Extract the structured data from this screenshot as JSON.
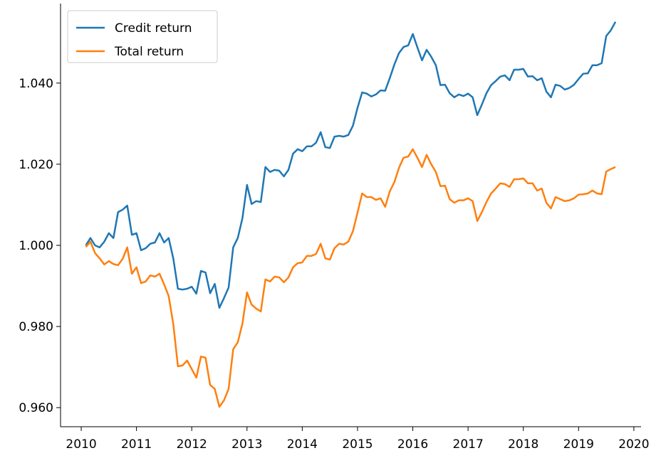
{
  "chart_data": {
    "type": "line",
    "x": [
      2010.083,
      2010.167,
      2010.25,
      2010.333,
      2010.417,
      2010.5,
      2010.583,
      2010.667,
      2010.75,
      2010.833,
      2010.917,
      2011.0,
      2011.083,
      2011.167,
      2011.25,
      2011.333,
      2011.417,
      2011.5,
      2011.583,
      2011.667,
      2011.75,
      2011.833,
      2011.917,
      2012.0,
      2012.083,
      2012.167,
      2012.25,
      2012.333,
      2012.417,
      2012.5,
      2012.583,
      2012.667,
      2012.75,
      2012.833,
      2012.917,
      2013.0,
      2013.083,
      2013.167,
      2013.25,
      2013.333,
      2013.417,
      2013.5,
      2013.583,
      2013.667,
      2013.75,
      2013.833,
      2013.917,
      2014.0,
      2014.083,
      2014.167,
      2014.25,
      2014.333,
      2014.417,
      2014.5,
      2014.583,
      2014.667,
      2014.75,
      2014.833,
      2014.917,
      2015.0,
      2015.083,
      2015.167,
      2015.25,
      2015.333,
      2015.417,
      2015.5,
      2015.583,
      2015.667,
      2015.75,
      2015.833,
      2015.917,
      2016.0,
      2016.083,
      2016.167,
      2016.25,
      2016.333,
      2016.417,
      2016.5,
      2016.583,
      2016.667,
      2016.75,
      2016.833,
      2016.917,
      2017.0,
      2017.083,
      2017.167,
      2017.25,
      2017.333,
      2017.417,
      2017.5,
      2017.583,
      2017.667,
      2017.75,
      2017.833,
      2017.917,
      2018.0,
      2018.083,
      2018.167,
      2018.25,
      2018.333,
      2018.417,
      2018.5,
      2018.583,
      2018.667,
      2018.75,
      2018.833,
      2018.917,
      2019.0,
      2019.083,
      2019.167,
      2019.25,
      2019.333,
      2019.417,
      2019.5,
      2019.583,
      2019.667
    ],
    "series": [
      {
        "name": "Credit return",
        "color": "#1f77b4",
        "values": [
          1.0,
          1.0018,
          1.0,
          0.9995,
          1.0009,
          1.003,
          1.0018,
          1.0082,
          1.0088,
          1.0098,
          1.0026,
          1.003,
          0.9988,
          0.9993,
          1.0004,
          1.0007,
          1.003,
          1.0007,
          1.0018,
          0.9967,
          0.9893,
          0.9891,
          0.9893,
          0.9898,
          0.9881,
          0.9937,
          0.9933,
          0.9882,
          0.9905,
          0.9846,
          0.987,
          0.9896,
          0.9995,
          1.0018,
          1.0067,
          1.0149,
          1.0102,
          1.0109,
          1.0107,
          1.0193,
          1.0181,
          1.0186,
          1.0184,
          1.017,
          1.0186,
          1.0226,
          1.0237,
          1.0232,
          1.0244,
          1.0244,
          1.0253,
          1.0279,
          1.0242,
          1.024,
          1.0268,
          1.027,
          1.0268,
          1.0272,
          1.0295,
          1.0339,
          1.0377,
          1.0374,
          1.0367,
          1.0372,
          1.0382,
          1.0381,
          1.0412,
          1.0446,
          1.0474,
          1.0489,
          1.0493,
          1.0521,
          1.0488,
          1.0456,
          1.0482,
          1.0465,
          1.0444,
          1.0395,
          1.0396,
          1.0375,
          1.0365,
          1.0372,
          1.0368,
          1.0374,
          1.0365,
          1.0321,
          1.0347,
          1.0375,
          1.0395,
          1.0405,
          1.0416,
          1.0419,
          1.0407,
          1.0433,
          1.0433,
          1.0435,
          1.0416,
          1.0417,
          1.0407,
          1.0412,
          1.0379,
          1.0365,
          1.0396,
          1.0393,
          1.0384,
          1.0388,
          1.0396,
          1.041,
          1.0423,
          1.0424,
          1.0444,
          1.0444,
          1.0449,
          1.0516,
          1.053,
          1.0551
        ]
      },
      {
        "name": "Total return",
        "color": "#ff7f0e",
        "values": [
          0.9996,
          1.0009,
          0.9981,
          0.9968,
          0.9953,
          0.9961,
          0.9954,
          0.9951,
          0.9967,
          0.9995,
          0.993,
          0.9946,
          0.9907,
          0.9911,
          0.9926,
          0.9923,
          0.993,
          0.9904,
          0.9875,
          0.9805,
          0.9702,
          0.9704,
          0.9716,
          0.9695,
          0.9674,
          0.9726,
          0.9723,
          0.9656,
          0.9646,
          0.9602,
          0.9618,
          0.9646,
          0.9744,
          0.9761,
          0.9807,
          0.9884,
          0.9854,
          0.9844,
          0.9837,
          0.9916,
          0.9911,
          0.9923,
          0.9921,
          0.9909,
          0.9921,
          0.9946,
          0.9956,
          0.9958,
          0.9974,
          0.9974,
          0.9979,
          1.0004,
          0.9968,
          0.9965,
          0.9993,
          1.0004,
          1.0002,
          1.0009,
          1.0035,
          1.0081,
          1.0128,
          1.0119,
          1.0119,
          1.0112,
          1.0116,
          1.0095,
          1.0133,
          1.0156,
          1.0191,
          1.0216,
          1.0219,
          1.0237,
          1.0216,
          1.0193,
          1.0223,
          1.02,
          1.0181,
          1.0146,
          1.0147,
          1.0114,
          1.0105,
          1.0111,
          1.0111,
          1.0116,
          1.0109,
          1.006,
          1.0082,
          1.0107,
          1.0128,
          1.014,
          1.0153,
          1.0151,
          1.0144,
          1.0163,
          1.0163,
          1.0165,
          1.0153,
          1.0153,
          1.0135,
          1.014,
          1.0105,
          1.0091,
          1.0119,
          1.0114,
          1.0109,
          1.0111,
          1.0116,
          1.0125,
          1.0126,
          1.0128,
          1.0135,
          1.0128,
          1.0126,
          1.0182,
          1.0188,
          1.0193
        ]
      }
    ],
    "xlim": [
      2009.626,
      2020.13
    ],
    "xticks": [
      2010,
      2011,
      2012,
      2013,
      2014,
      2015,
      2016,
      2017,
      2018,
      2019,
      2020
    ],
    "ylim": [
      0.9553,
      1.0596
    ],
    "yticks": [
      {
        "value": 0.96,
        "label": "0.960"
      },
      {
        "value": 0.98,
        "label": "0.980"
      },
      {
        "value": 1.0,
        "label": "1.000"
      },
      {
        "value": 1.02,
        "label": "1.020"
      },
      {
        "value": 1.04,
        "label": "1.040"
      }
    ],
    "legend": "upper left"
  }
}
